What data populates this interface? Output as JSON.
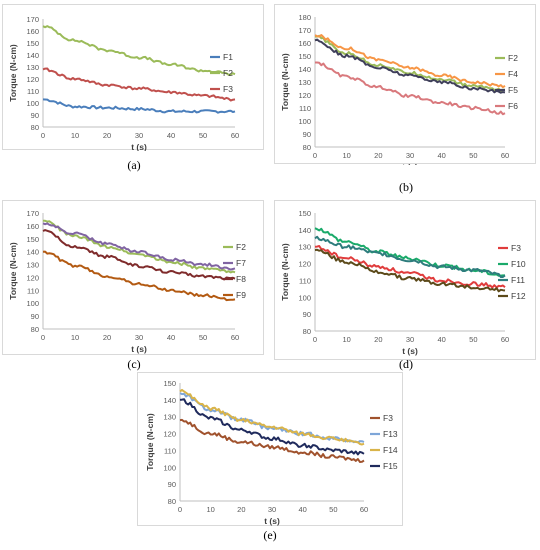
{
  "captions": [
    "(a)",
    "(b)",
    "(c)",
    "(d)",
    "(e)"
  ],
  "chart_data": [
    {
      "type": "line",
      "panel": "(a)",
      "xlabel": "t (s)",
      "ylabel": "Torque (N-cm)",
      "xlim": [
        0,
        60
      ],
      "ylim": [
        80,
        170
      ],
      "xticks": [
        0,
        10,
        20,
        30,
        40,
        50,
        60
      ],
      "yticks": [
        80,
        90,
        100,
        110,
        120,
        130,
        140,
        150,
        160,
        170
      ],
      "legend": "right",
      "series": [
        {
          "name": "F1",
          "color": "#4a7ebb",
          "x": [
            0,
            10,
            20,
            30,
            40,
            50,
            60
          ],
          "values": [
            103,
            97,
            96,
            95,
            93,
            93,
            93
          ]
        },
        {
          "name": "F2",
          "color": "#9bbb59",
          "x": [
            0,
            10,
            20,
            30,
            40,
            50,
            60
          ],
          "values": [
            164,
            152,
            144,
            138,
            132,
            127,
            124
          ]
        },
        {
          "name": "F3",
          "color": "#c0504d",
          "x": [
            0,
            10,
            20,
            30,
            40,
            50,
            60
          ],
          "values": [
            128,
            120,
            115,
            112,
            109,
            106,
            103
          ]
        }
      ]
    },
    {
      "type": "line",
      "panel": "(b)",
      "xlabel": "t (s)",
      "ylabel": "Torque (N-cm)",
      "xlim": [
        0,
        60
      ],
      "ylim": [
        80,
        180
      ],
      "xticks": [
        0,
        10,
        20,
        30,
        40,
        50,
        60
      ],
      "yticks": [
        80,
        90,
        100,
        110,
        120,
        130,
        140,
        150,
        160,
        170,
        180
      ],
      "legend": "right",
      "series": [
        {
          "name": "F2",
          "color": "#9bbb59",
          "x": [
            0,
            10,
            20,
            30,
            40,
            50,
            60
          ],
          "values": [
            165,
            152,
            143,
            137,
            132,
            127,
            124
          ]
        },
        {
          "name": "F4",
          "color": "#f79646",
          "x": [
            0,
            10,
            20,
            30,
            40,
            50,
            60
          ],
          "values": [
            166,
            156,
            147,
            141,
            135,
            130,
            127
          ]
        },
        {
          "name": "F5",
          "color": "#3f3f5a",
          "x": [
            0,
            10,
            20,
            30,
            40,
            50,
            60
          ],
          "values": [
            162,
            150,
            141,
            135,
            130,
            125,
            122
          ]
        },
        {
          "name": "F6",
          "color": "#d9797d",
          "x": [
            0,
            10,
            20,
            30,
            40,
            50,
            60
          ],
          "values": [
            145,
            134,
            126,
            119,
            114,
            110,
            106
          ]
        }
      ]
    },
    {
      "type": "line",
      "panel": "(c)",
      "xlabel": "t (s)",
      "ylabel": "Torque (N-cm)",
      "xlim": [
        0,
        60
      ],
      "ylim": [
        80,
        170
      ],
      "xticks": [
        0,
        10,
        20,
        30,
        40,
        50,
        60
      ],
      "yticks": [
        80,
        90,
        100,
        110,
        120,
        130,
        140,
        150,
        160,
        170
      ],
      "legend": "right",
      "series": [
        {
          "name": "F2",
          "color": "#9bbb59",
          "x": [
            0,
            10,
            20,
            30,
            40,
            50,
            60
          ],
          "values": [
            164,
            152,
            144,
            138,
            132,
            127,
            124
          ]
        },
        {
          "name": "F7",
          "color": "#8064a2",
          "x": [
            0,
            10,
            20,
            30,
            40,
            50,
            60
          ],
          "values": [
            162,
            154,
            146,
            140,
            134,
            130,
            127
          ]
        },
        {
          "name": "F8",
          "color": "#7f2b2b",
          "x": [
            0,
            10,
            20,
            30,
            40,
            50,
            60
          ],
          "values": [
            156,
            144,
            136,
            129,
            124,
            121,
            119
          ]
        },
        {
          "name": "F9",
          "color": "#b35a12",
          "x": [
            0,
            10,
            20,
            30,
            40,
            50,
            60
          ],
          "values": [
            140,
            129,
            121,
            115,
            110,
            106,
            103
          ]
        }
      ]
    },
    {
      "type": "line",
      "panel": "(d)",
      "xlabel": "t (s)",
      "ylabel": "Torque (N-cm)",
      "xlim": [
        0,
        60
      ],
      "ylim": [
        80,
        150
      ],
      "xticks": [
        0,
        10,
        20,
        30,
        40,
        50,
        60
      ],
      "yticks": [
        80,
        90,
        100,
        110,
        120,
        130,
        140,
        150
      ],
      "legend": "right",
      "series": [
        {
          "name": "F3",
          "color": "#e03c3c",
          "x": [
            0,
            10,
            20,
            30,
            40,
            50,
            60
          ],
          "values": [
            130,
            123,
            118,
            114,
            110,
            108,
            106
          ]
        },
        {
          "name": "F10",
          "color": "#1aaa6a",
          "x": [
            0,
            10,
            20,
            30,
            40,
            50,
            60
          ],
          "values": [
            141,
            133,
            127,
            123,
            119,
            116,
            113
          ]
        },
        {
          "name": "F11",
          "color": "#2e7d7d",
          "x": [
            0,
            10,
            20,
            30,
            40,
            50,
            60
          ],
          "values": [
            135,
            130,
            126,
            122,
            118,
            116,
            113
          ]
        },
        {
          "name": "F12",
          "color": "#5c4a1a",
          "x": [
            0,
            10,
            20,
            30,
            40,
            50,
            60
          ],
          "values": [
            128,
            121,
            115,
            111,
            108,
            106,
            104
          ]
        }
      ]
    },
    {
      "type": "line",
      "panel": "(e)",
      "xlabel": "t (s)",
      "ylabel": "Torque (N-cm)",
      "xlim": [
        0,
        60
      ],
      "ylim": [
        80,
        150
      ],
      "xticks": [
        0,
        10,
        20,
        30,
        40,
        50,
        60
      ],
      "yticks": [
        80,
        90,
        100,
        110,
        120,
        130,
        140,
        150
      ],
      "legend": "right",
      "series": [
        {
          "name": "F3",
          "color": "#a0522d",
          "x": [
            0,
            10,
            20,
            30,
            40,
            50,
            60
          ],
          "values": [
            128,
            120,
            115,
            112,
            109,
            106,
            104
          ]
        },
        {
          "name": "F13",
          "color": "#7ea6d8",
          "x": [
            0,
            10,
            20,
            30,
            40,
            50,
            60
          ],
          "values": [
            144,
            134,
            128,
            123,
            120,
            117,
            115
          ]
        },
        {
          "name": "F14",
          "color": "#d9b44a",
          "x": [
            0,
            10,
            20,
            30,
            40,
            50,
            60
          ],
          "values": [
            145,
            135,
            128,
            124,
            120,
            117,
            114
          ]
        },
        {
          "name": "F15",
          "color": "#1f2a5c",
          "x": [
            0,
            10,
            20,
            30,
            40,
            50,
            60
          ],
          "values": [
            140,
            129,
            122,
            117,
            113,
            110,
            108
          ]
        }
      ]
    }
  ]
}
